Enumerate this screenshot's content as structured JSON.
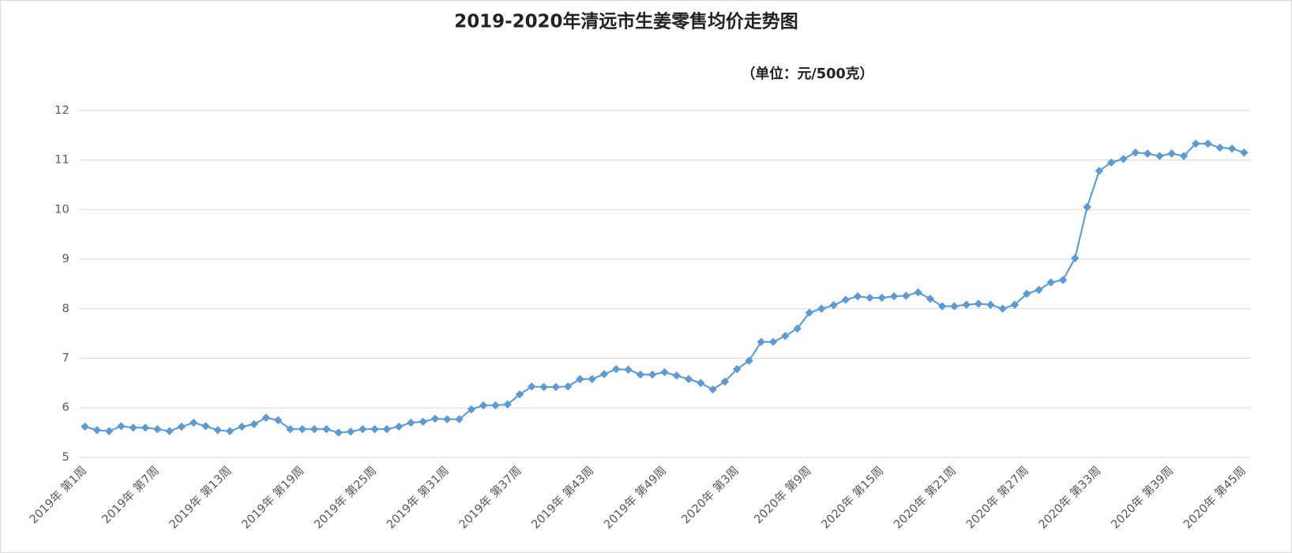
{
  "chart_data": {
    "type": "line",
    "title": "2019-2020年清远市生姜零售均价走势图",
    "subtitle": "（单位：元/500克）",
    "categories": [
      "2019年 第1周",
      null,
      null,
      null,
      null,
      null,
      "2019年 第7周",
      null,
      null,
      null,
      null,
      null,
      "2019年 第13周",
      null,
      null,
      null,
      null,
      null,
      "2019年 第19周",
      null,
      null,
      null,
      null,
      null,
      "2019年 第25周",
      null,
      null,
      null,
      null,
      null,
      "2019年 第31周",
      null,
      null,
      null,
      null,
      null,
      "2019年 第37周",
      null,
      null,
      null,
      null,
      null,
      "2019年 第43周",
      null,
      null,
      null,
      null,
      null,
      "2019年 第49周",
      null,
      null,
      null,
      null,
      null,
      "2020年 第3周",
      null,
      null,
      null,
      null,
      null,
      "2020年 第9周",
      null,
      null,
      null,
      null,
      null,
      "2020年 第15周",
      null,
      null,
      null,
      null,
      null,
      "2020年 第21周",
      null,
      null,
      null,
      null,
      null,
      "2020年 第27周",
      null,
      null,
      null,
      null,
      null,
      "2020年 第33周",
      null,
      null,
      null,
      null,
      null,
      "2020年 第39周",
      null,
      null,
      null,
      null,
      null,
      "2020年 第45周"
    ],
    "series": [
      {
        "color": "#5b9bd5",
        "values": [
          5.62,
          5.55,
          5.53,
          5.63,
          5.6,
          5.6,
          5.57,
          5.53,
          5.62,
          5.7,
          5.63,
          5.55,
          5.53,
          5.62,
          5.67,
          5.8,
          5.75,
          5.57,
          5.57,
          5.57,
          5.57,
          5.5,
          5.52,
          5.57,
          5.57,
          5.57,
          5.62,
          5.7,
          5.72,
          5.78,
          5.77,
          5.77,
          5.97,
          6.05,
          6.05,
          6.07,
          6.27,
          6.43,
          6.42,
          6.42,
          6.43,
          6.58,
          6.58,
          6.68,
          6.78,
          6.77,
          6.67,
          6.67,
          6.72,
          6.65,
          6.58,
          6.5,
          6.37,
          6.53,
          6.78,
          6.95,
          7.33,
          7.33,
          7.45,
          7.6,
          7.92,
          8.0,
          8.07,
          8.18,
          8.25,
          8.22,
          8.22,
          8.25,
          8.26,
          8.33,
          8.2,
          8.05,
          8.05,
          8.08,
          8.1,
          8.08,
          8.0,
          8.08,
          8.3,
          8.38,
          8.53,
          8.58,
          9.02,
          10.05,
          10.78,
          10.95,
          11.02,
          11.15,
          11.13,
          11.08,
          11.13,
          11.08,
          11.33,
          11.33,
          11.25,
          11.23,
          11.15
        ]
      }
    ],
    "ylim": [
      5,
      12
    ],
    "yticks": [
      5,
      6,
      7,
      8,
      9,
      10,
      11,
      12
    ],
    "grid": true
  }
}
